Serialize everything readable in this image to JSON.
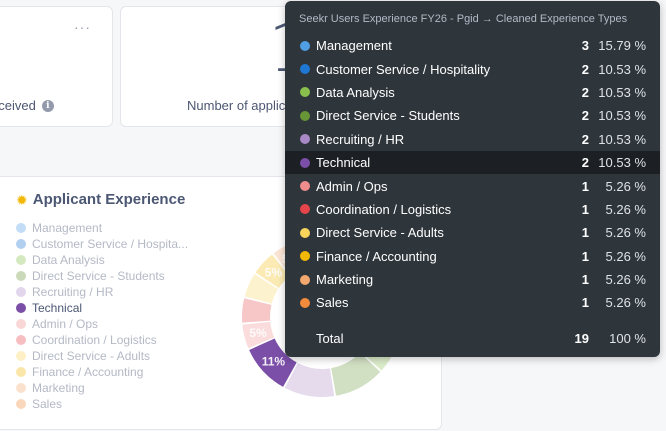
{
  "scalar_left": {
    "more_icon": "ellipsis-icon",
    "label": "eceived",
    "info_icon": "info-icon"
  },
  "scalar_mid": {
    "value": "1",
    "label": "Number of applic"
  },
  "chart_card": {
    "title": "Applicant Experience",
    "title_icon": "sun-icon",
    "legend": [
      {
        "label": "Management",
        "color": "#509ee3"
      },
      {
        "label": "Customer Service / Hospita...",
        "color": "#1f77d4"
      },
      {
        "label": "Data Analysis",
        "color": "#88bf4d"
      },
      {
        "label": "Direct Service - Students",
        "color": "#689636"
      },
      {
        "label": "Recruiting / HR",
        "color": "#a989c5"
      },
      {
        "label": "Technical",
        "color": "#7b4fa8"
      },
      {
        "label": "Admin / Ops",
        "color": "#ef8c8c"
      },
      {
        "label": "Coordination / Logistics",
        "color": "#e5454a"
      },
      {
        "label": "Direct Service - Adults",
        "color": "#f9d45c"
      },
      {
        "label": "Finance / Accounting",
        "color": "#f2b807"
      },
      {
        "label": "Marketing",
        "color": "#f2a86f"
      },
      {
        "label": "Sales",
        "color": "#f28c3c"
      }
    ],
    "active_legend": "Technical",
    "slice_labels": [
      "5%",
      "5%",
      "5%",
      "11%"
    ]
  },
  "chart_data": {
    "type": "pie",
    "title": "Applicant Experience",
    "categories": [
      "Management",
      "Customer Service / Hospitality",
      "Data Analysis",
      "Direct Service - Students",
      "Recruiting / HR",
      "Technical",
      "Admin / Ops",
      "Coordination / Logistics",
      "Direct Service - Adults",
      "Finance / Accounting",
      "Marketing",
      "Sales"
    ],
    "values": [
      3,
      2,
      2,
      2,
      2,
      2,
      1,
      1,
      1,
      1,
      1,
      1
    ],
    "percents": [
      "15.79 %",
      "10.53 %",
      "10.53 %",
      "10.53 %",
      "10.53 %",
      "10.53 %",
      "5.26 %",
      "5.26 %",
      "5.26 %",
      "5.26 %",
      "5.26 %",
      "5.26 %"
    ],
    "total": 19
  },
  "tooltip": {
    "header": "Seekr Users Experience FY26 - Pgid → Cleaned Experience Types",
    "rows": [
      {
        "name": "Management",
        "count": "3",
        "pct": "15.79 %",
        "color": "#509ee3"
      },
      {
        "name": "Customer Service / Hospitality",
        "count": "2",
        "pct": "10.53 %",
        "color": "#1f77d4"
      },
      {
        "name": "Data Analysis",
        "count": "2",
        "pct": "10.53 %",
        "color": "#88bf4d"
      },
      {
        "name": "Direct Service - Students",
        "count": "2",
        "pct": "10.53 %",
        "color": "#689636"
      },
      {
        "name": "Recruiting / HR",
        "count": "2",
        "pct": "10.53 %",
        "color": "#a989c5"
      },
      {
        "name": "Technical",
        "count": "2",
        "pct": "10.53 %",
        "color": "#7b4fa8",
        "highlight": true
      },
      {
        "name": "Admin / Ops",
        "count": "1",
        "pct": "5.26 %",
        "color": "#ef8c8c"
      },
      {
        "name": "Coordination / Logistics",
        "count": "1",
        "pct": "5.26 %",
        "color": "#e5454a"
      },
      {
        "name": "Direct Service - Adults",
        "count": "1",
        "pct": "5.26 %",
        "color": "#f9d45c"
      },
      {
        "name": "Finance / Accounting",
        "count": "1",
        "pct": "5.26 %",
        "color": "#f2b807"
      },
      {
        "name": "Marketing",
        "count": "1",
        "pct": "5.26 %",
        "color": "#f2a86f"
      },
      {
        "name": "Sales",
        "count": "1",
        "pct": "5.26 %",
        "color": "#f28c3c"
      }
    ],
    "total": {
      "name": "Total",
      "count": "19",
      "pct": "100 %"
    }
  }
}
